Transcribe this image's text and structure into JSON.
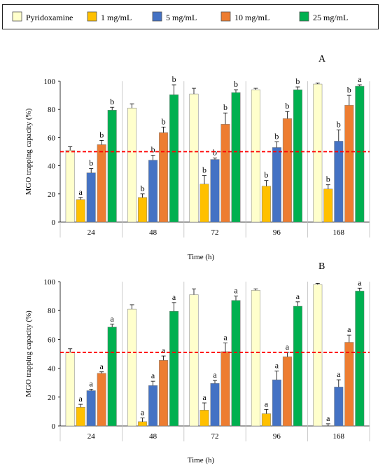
{
  "legend": [
    {
      "label": "Pyridoxamine",
      "color": "#FFFFCC"
    },
    {
      "label": "1 mg/mL",
      "color": "#FFC000"
    },
    {
      "label": "5 mg/mL",
      "color": "#4472C4"
    },
    {
      "label": "10 mg/mL",
      "color": "#ED7D31"
    },
    {
      "label": "25 mg/mL",
      "color": "#00B050"
    }
  ],
  "chart_data": [
    {
      "type": "bar",
      "panel_label": "A",
      "ylabel": "MGO trapping capacity (%)",
      "xlabel": "Time (h)",
      "ylim": [
        0,
        100
      ],
      "yticks": [
        0,
        20,
        40,
        60,
        80,
        100
      ],
      "reference_line": {
        "y": 50,
        "color": "#FF0000",
        "style": "dashed"
      },
      "categories": [
        "24",
        "48",
        "72",
        "96",
        "168"
      ],
      "series": [
        {
          "name": "Pyridoxamine",
          "color": "#FFFFCC",
          "values": [
            51,
            81,
            91,
            94,
            98
          ],
          "errors": [
            2.5,
            3,
            4,
            1,
            0.8
          ],
          "letters": [
            "",
            "",
            "",
            "",
            ""
          ]
        },
        {
          "name": "1 mg/mL",
          "color": "#FFC000",
          "values": [
            16,
            17.5,
            27,
            25.5,
            23.5
          ],
          "errors": [
            1.5,
            2.5,
            6,
            4,
            3
          ],
          "letters": [
            "a",
            "b",
            "b",
            "b",
            "b"
          ]
        },
        {
          "name": "5 mg/mL",
          "color": "#4472C4",
          "values": [
            35,
            44,
            44.5,
            53,
            57.5
          ],
          "errors": [
            3,
            3.5,
            1,
            4,
            8
          ],
          "letters": [
            "b",
            "b",
            "b",
            "b",
            "b"
          ]
        },
        {
          "name": "10 mg/mL",
          "color": "#ED7D31",
          "values": [
            55,
            63.5,
            69.5,
            73.5,
            83
          ],
          "errors": [
            3,
            4,
            8,
            5,
            7
          ],
          "letters": [
            "b",
            "b",
            "b",
            "b",
            "b"
          ]
        },
        {
          "name": "25 mg/mL",
          "color": "#00B050",
          "values": [
            79.5,
            90.5,
            92,
            94,
            96.5
          ],
          "errors": [
            2,
            7,
            2,
            2,
            1
          ],
          "letters": [
            "b",
            "b",
            "b",
            "b",
            "a"
          ]
        }
      ]
    },
    {
      "type": "bar",
      "panel_label": "B",
      "ylabel": "MGO trapping capacity (%)",
      "xlabel": "Time (h)",
      "ylim": [
        0,
        100
      ],
      "yticks": [
        0,
        20,
        40,
        60,
        80,
        100
      ],
      "reference_line": {
        "y": 51,
        "color": "#FF0000",
        "style": "dashed"
      },
      "categories": [
        "24",
        "48",
        "72",
        "96",
        "168"
      ],
      "series": [
        {
          "name": "Pyridoxamine",
          "color": "#FFFFCC",
          "values": [
            51,
            81,
            91,
            94,
            98
          ],
          "errors": [
            2.5,
            3,
            4,
            1,
            0.8
          ],
          "letters": [
            "",
            "",
            "",
            "",
            ""
          ]
        },
        {
          "name": "1 mg/mL",
          "color": "#FFC000",
          "values": [
            13,
            3,
            11,
            8.5,
            0
          ],
          "errors": [
            2,
            2.5,
            5,
            3,
            1.5
          ],
          "letters": [
            "a",
            "a",
            "a",
            "a",
            "a"
          ]
        },
        {
          "name": "5 mg/mL",
          "color": "#4472C4",
          "values": [
            24.5,
            28,
            29.5,
            32,
            27
          ],
          "errors": [
            1,
            3,
            2,
            6,
            5
          ],
          "letters": [
            "a",
            "a",
            "a",
            "a",
            "a"
          ]
        },
        {
          "name": "10 mg/mL",
          "color": "#ED7D31",
          "values": [
            36.5,
            45.5,
            51.5,
            48,
            58
          ],
          "errors": [
            1,
            3,
            6,
            3,
            5
          ],
          "letters": [
            "a",
            "a",
            "a",
            "a",
            "a"
          ]
        },
        {
          "name": "25 mg/mL",
          "color": "#00B050",
          "values": [
            68.5,
            79.5,
            87,
            83,
            93.5
          ],
          "errors": [
            2,
            6,
            3,
            3,
            2
          ],
          "letters": [
            "a",
            "a",
            "a",
            "a",
            "a"
          ]
        }
      ]
    }
  ]
}
